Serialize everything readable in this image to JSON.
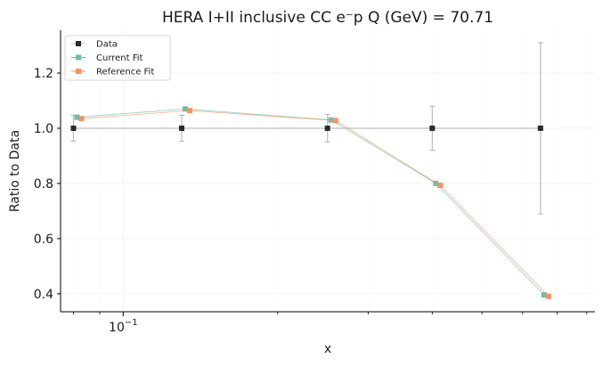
{
  "chart_data": {
    "type": "line",
    "title": "HERA I+II inclusive CC e⁻p Q (GeV) = 70.71",
    "xlabel": "x",
    "ylabel": "Ratio to Data",
    "x_scale": "log",
    "xlim": [
      0.0755,
      0.83
    ],
    "ylim": [
      0.335,
      1.355
    ],
    "x_tick_labels": [
      {
        "value": 0.1,
        "base": "10",
        "exponent": "−1"
      }
    ],
    "y_ticks": [
      0.4,
      0.6,
      0.8,
      1.0,
      1.2
    ],
    "y_tick_labels": [
      "0.4",
      "0.6",
      "0.8",
      "1.0",
      "1.2"
    ],
    "grid": true,
    "legend_position": "top-left",
    "series": [
      {
        "name": "Data",
        "color": "#2b2b2b",
        "line_color": "#bdbdbd",
        "x": [
          0.08,
          0.13,
          0.25,
          0.4,
          0.65
        ],
        "y": [
          1.0,
          1.0,
          1.0,
          1.0,
          1.0
        ],
        "yerr": [
          0.047,
          0.047,
          0.05,
          0.08,
          0.31
        ]
      },
      {
        "name": "Current Fit",
        "color": "#66c2a5",
        "x": [
          0.08,
          0.13,
          0.25,
          0.4,
          0.65
        ],
        "y": [
          1.04,
          1.07,
          1.03,
          0.8,
          0.396
        ]
      },
      {
        "name": "Reference Fit",
        "color": "#fc8d62",
        "x": [
          0.08,
          0.13,
          0.25,
          0.4,
          0.65
        ],
        "y": [
          1.035,
          1.064,
          1.028,
          0.793,
          0.391
        ]
      }
    ]
  }
}
